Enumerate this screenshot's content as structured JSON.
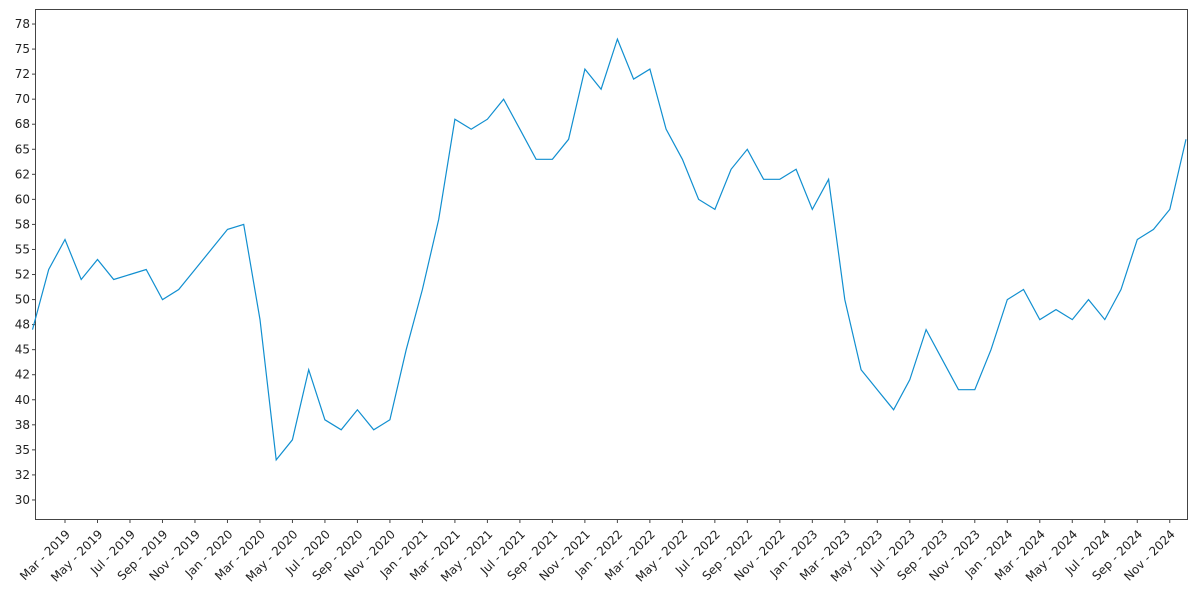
{
  "chart_data": {
    "type": "line",
    "x": [
      "2019-01",
      "2019-02",
      "2019-03",
      "2019-04",
      "2019-05",
      "2019-06",
      "2019-07",
      "2019-08",
      "2019-09",
      "2019-10",
      "2019-11",
      "2019-12",
      "2020-01",
      "2020-02",
      "2020-03",
      "2020-04",
      "2020-05",
      "2020-06",
      "2020-07",
      "2020-08",
      "2020-09",
      "2020-10",
      "2020-11",
      "2020-12",
      "2021-01",
      "2021-02",
      "2021-03",
      "2021-04",
      "2021-05",
      "2021-06",
      "2021-07",
      "2021-08",
      "2021-09",
      "2021-10",
      "2021-11",
      "2021-12",
      "2022-01",
      "2022-02",
      "2022-03",
      "2022-04",
      "2022-05",
      "2022-06",
      "2022-07",
      "2022-08",
      "2022-09",
      "2022-10",
      "2022-11",
      "2022-12",
      "2023-01",
      "2023-02",
      "2023-03",
      "2023-04",
      "2023-05",
      "2023-06",
      "2023-07",
      "2023-08",
      "2023-09",
      "2023-10",
      "2023-11",
      "2023-12",
      "2024-01",
      "2024-02",
      "2024-03",
      "2024-04",
      "2024-05",
      "2024-06",
      "2024-07",
      "2024-08",
      "2024-09",
      "2024-10",
      "2024-11",
      "2024-12"
    ],
    "series": [
      {
        "color": "#118fd0",
        "values": [
          47,
          53,
          56,
          52,
          54,
          52,
          52.5,
          53,
          50,
          51,
          53,
          55,
          57,
          57.5,
          48,
          34,
          36,
          43,
          38,
          37,
          39,
          37,
          38,
          45,
          51,
          58,
          68,
          67,
          68,
          70,
          67,
          64,
          64,
          66,
          73,
          71,
          76,
          72,
          73,
          67,
          64,
          60,
          59,
          63,
          65,
          62,
          62,
          63,
          59,
          62,
          50,
          43,
          41,
          39,
          42,
          47,
          44,
          41,
          41,
          45,
          50,
          51,
          48,
          49,
          48,
          50,
          48,
          51,
          56,
          57,
          59,
          66
        ]
      }
    ],
    "xlim": [
      "2019-01",
      "2024-12"
    ],
    "xticks": [
      {
        "value": "2019-03",
        "label": "Mar - 2019"
      },
      {
        "value": "2019-05",
        "label": "May - 2019"
      },
      {
        "value": "2019-07",
        "label": "Jul - 2019"
      },
      {
        "value": "2019-09",
        "label": "Sep - 2019"
      },
      {
        "value": "2019-11",
        "label": "Nov - 2019"
      },
      {
        "value": "2020-01",
        "label": "Jan - 2020"
      },
      {
        "value": "2020-03",
        "label": "Mar - 2020"
      },
      {
        "value": "2020-05",
        "label": "May - 2020"
      },
      {
        "value": "2020-07",
        "label": "Jul - 2020"
      },
      {
        "value": "2020-09",
        "label": "Sep - 2020"
      },
      {
        "value": "2020-11",
        "label": "Nov - 2020"
      },
      {
        "value": "2021-01",
        "label": "Jan - 2021"
      },
      {
        "value": "2021-03",
        "label": "Mar - 2021"
      },
      {
        "value": "2021-05",
        "label": "May - 2021"
      },
      {
        "value": "2021-07",
        "label": "Jul - 2021"
      },
      {
        "value": "2021-09",
        "label": "Sep - 2021"
      },
      {
        "value": "2021-11",
        "label": "Nov - 2021"
      },
      {
        "value": "2022-01",
        "label": "Jan - 2022"
      },
      {
        "value": "2022-03",
        "label": "Mar - 2022"
      },
      {
        "value": "2022-05",
        "label": "May - 2022"
      },
      {
        "value": "2022-07",
        "label": "Jul - 2022"
      },
      {
        "value": "2022-09",
        "label": "Sep - 2022"
      },
      {
        "value": "2022-11",
        "label": "Nov - 2022"
      },
      {
        "value": "2023-01",
        "label": "Jan - 2023"
      },
      {
        "value": "2023-03",
        "label": "Mar - 2023"
      },
      {
        "value": "2023-05",
        "label": "May - 2023"
      },
      {
        "value": "2023-07",
        "label": "Jul - 2023"
      },
      {
        "value": "2023-09",
        "label": "Sep - 2023"
      },
      {
        "value": "2023-11",
        "label": "Nov - 2023"
      },
      {
        "value": "2024-01",
        "label": "Jan - 2024"
      },
      {
        "value": "2024-03",
        "label": "Mar - 2024"
      },
      {
        "value": "2024-05",
        "label": "May - 2024"
      },
      {
        "value": "2024-07",
        "label": "Jul - 2024"
      },
      {
        "value": "2024-09",
        "label": "Sep - 2024"
      },
      {
        "value": "2024-11",
        "label": "Nov - 2024"
      }
    ],
    "ylim": [
      28.1,
      78.9
    ],
    "yticks": [
      30,
      {
        "value": 32.5,
        "label": "32"
      },
      35,
      {
        "value": 37.5,
        "label": "38"
      },
      40,
      {
        "value": 42.5,
        "label": "42"
      },
      45,
      {
        "value": 47.5,
        "label": "48"
      },
      50,
      {
        "value": 52.5,
        "label": "52"
      },
      55,
      {
        "value": 57.5,
        "label": "58"
      },
      60,
      {
        "value": 62.5,
        "label": "62"
      },
      65,
      {
        "value": 67.5,
        "label": "68"
      },
      70,
      {
        "value": 72.5,
        "label": "72"
      },
      75,
      {
        "value": 77.5,
        "label": "78"
      }
    ],
    "grid": false
  }
}
